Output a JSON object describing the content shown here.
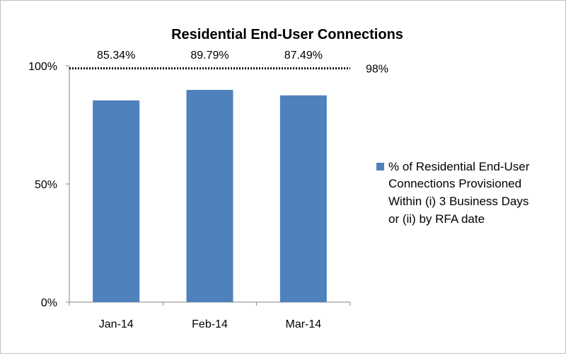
{
  "chart_data": {
    "type": "bar",
    "title": "Residential End-User Connections",
    "categories": [
      "Jan-14",
      "Feb-14",
      "Mar-14"
    ],
    "series": [
      {
        "name": "% of Residential End-User Connections Provisioned Within (i) 3 Business Days or (ii) by RFA date",
        "values": [
          85.34,
          89.79,
          87.49
        ],
        "data_labels": [
          "85.34%",
          "89.79%",
          "87.49%"
        ],
        "color": "#4F81BD"
      }
    ],
    "target": {
      "value": 98,
      "label": "98%",
      "style": "dotted",
      "color": "#000000"
    },
    "y_ticks": [
      {
        "value": 0,
        "label": "0%"
      },
      {
        "value": 50,
        "label": "50%"
      },
      {
        "value": 100,
        "label": "100%"
      }
    ],
    "ylim": [
      0,
      100
    ],
    "xlabel": "",
    "ylabel": "",
    "grid": false,
    "legend": {
      "position": "right",
      "lines": [
        "% of Residential End-User",
        "Connections Provisioned",
        "Within (i) 3 Business Days",
        "or (ii) by RFA date"
      ]
    }
  }
}
